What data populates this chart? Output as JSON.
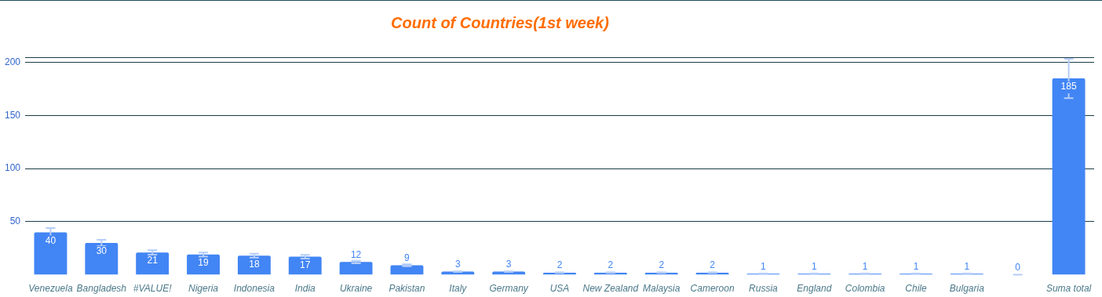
{
  "chart_data": {
    "type": "bar",
    "title": "Count of Countries(1st week)",
    "categories": [
      "Venezuela",
      "Bangladesh",
      "#VALUE!",
      "Nigeria",
      "Indonesia",
      "India",
      "Ukraine",
      "Pakistan",
      "Italy",
      "Germany",
      "USA",
      "New Zealand",
      "Malaysia",
      "Cameroon",
      "Russia",
      "England",
      "Colombia",
      "Chile",
      "Bulgaria",
      null,
      "Suma total"
    ],
    "values": [
      40,
      30,
      21,
      19,
      18,
      17,
      12,
      9,
      3,
      3,
      2,
      2,
      2,
      2,
      1,
      1,
      1,
      1,
      1,
      0,
      185
    ],
    "errors": [
      4,
      3,
      2.1,
      1.9,
      1.8,
      1.7,
      1.2,
      0.9,
      0.3,
      0.3,
      0.2,
      0.2,
      0.2,
      0.2,
      0.1,
      0.1,
      0.1,
      0.1,
      0.1,
      0,
      18.5
    ],
    "color": "#4285f4",
    "ylim": [
      0,
      205
    ],
    "yticks": [
      50,
      100,
      150,
      200
    ],
    "grid": "y",
    "legend": false,
    "data_labels": true
  }
}
